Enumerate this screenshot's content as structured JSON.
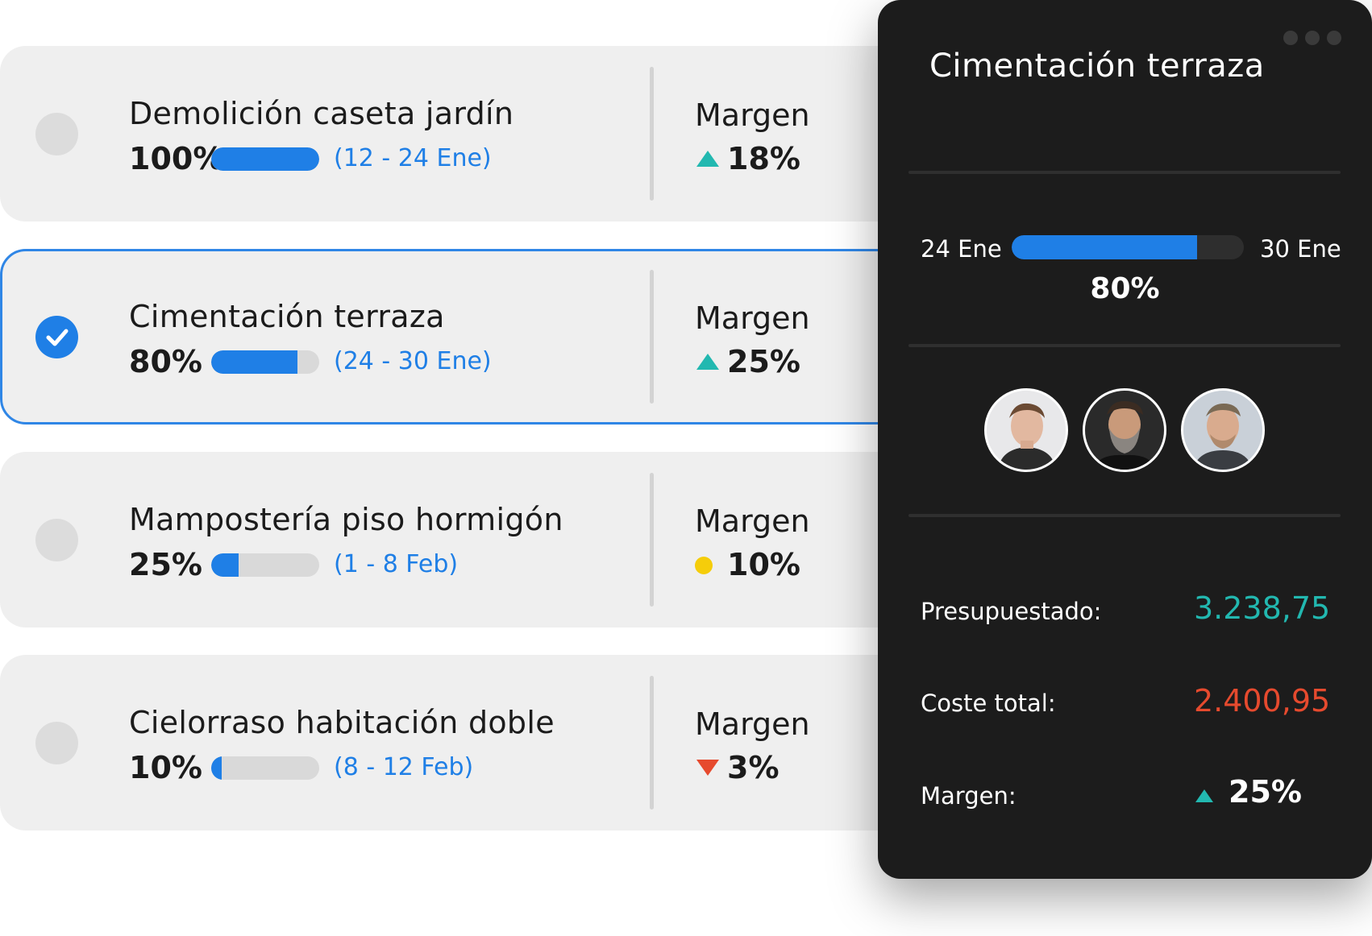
{
  "colors": {
    "accent": "#1f7fe6",
    "up": "#22b8b0",
    "down": "#e64a2e",
    "neutral": "#f5cd0a"
  },
  "tasks": [
    {
      "title": "Demolición caseta jardín",
      "pct_label": "100%",
      "progress": 1.0,
      "dates": "(12 - 24 Ene)",
      "margin_label": "Margen",
      "margin_value": "18%",
      "trend": "up",
      "selected": false
    },
    {
      "title": "Cimentación terraza",
      "pct_label": "80%",
      "progress": 0.8,
      "dates": "(24 - 30 Ene)",
      "margin_label": "Margen",
      "margin_value": "25%",
      "trend": "up",
      "selected": true
    },
    {
      "title": "Mampostería piso hormigón",
      "pct_label": "25%",
      "progress": 0.25,
      "dates": "(1 - 8 Feb)",
      "margin_label": "Margen",
      "margin_value": "10%",
      "trend": "neutral",
      "selected": false
    },
    {
      "title": "Cielorraso habitación doble",
      "pct_label": "10%",
      "progress": 0.1,
      "dates": "(8 - 12 Feb)",
      "margin_label": "Margen",
      "margin_value": "3%",
      "trend": "down",
      "selected": false
    }
  ],
  "detail": {
    "title": "Cimentación terraza",
    "start": "24 Ene",
    "end": "30 Ene",
    "progress": 0.8,
    "pct_label": "80%",
    "avatars": [
      "avatar-person-1",
      "avatar-person-2",
      "avatar-person-3"
    ],
    "budget_label": "Presupuestado:",
    "budget_value": "3.238,75",
    "cost_label": "Coste total:",
    "cost_value": "2.400,95",
    "margin_label": "Margen:",
    "margin_value": "25%",
    "margin_trend": "up"
  }
}
